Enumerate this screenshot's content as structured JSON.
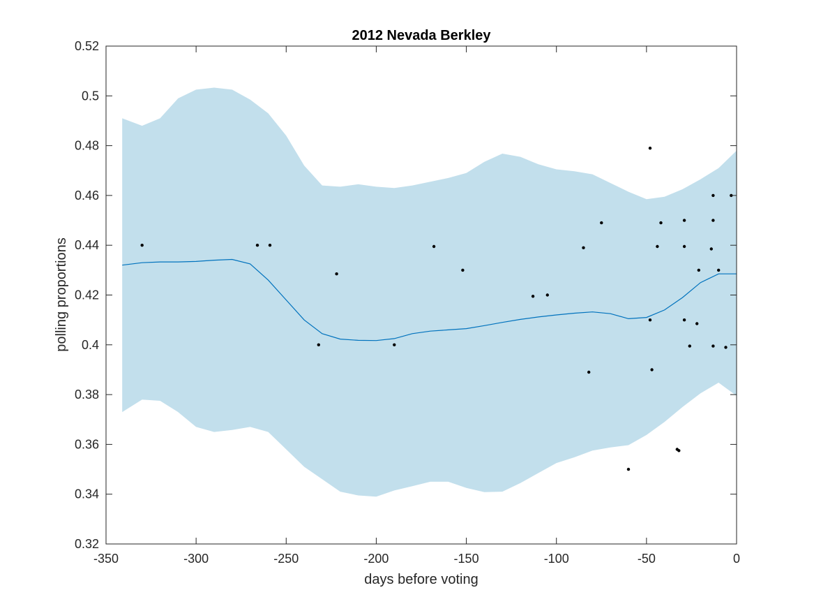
{
  "chart_data": {
    "type": "scatter",
    "title": "2012 Nevada Berkley",
    "xlabel": "days before voting",
    "ylabel": "polling proportions",
    "xlim": [
      -350,
      0
    ],
    "ylim": [
      0.32,
      0.52
    ],
    "xticks": [
      "-350",
      "-300",
      "-250",
      "-200",
      "-150",
      "-100",
      "-50",
      "0"
    ],
    "yticks": [
      "0.32",
      "0.34",
      "0.36",
      "0.38",
      "0.4",
      "0.42",
      "0.44",
      "0.46",
      "0.48",
      "0.5",
      "0.52"
    ],
    "grid": false,
    "colors": {
      "band": "#c2dfec",
      "line": "#0072bd",
      "points": "#000000",
      "axes": "#262626"
    },
    "band": {
      "x": [
        -341,
        -330,
        -320,
        -310,
        -300,
        -290,
        -280,
        -270,
        -260,
        -250,
        -240,
        -230,
        -220,
        -210,
        -200,
        -190,
        -180,
        -170,
        -160,
        -150,
        -140,
        -130,
        -120,
        -110,
        -100,
        -90,
        -80,
        -70,
        -60,
        -50,
        -40,
        -30,
        -20,
        -10,
        0
      ],
      "upper": [
        0.491,
        0.488,
        0.491,
        0.499,
        0.5025,
        0.5033,
        0.5025,
        0.4985,
        0.493,
        0.484,
        0.472,
        0.464,
        0.4635,
        0.4645,
        0.4635,
        0.463,
        0.464,
        0.4655,
        0.467,
        0.469,
        0.4735,
        0.4768,
        0.4755,
        0.4725,
        0.4705,
        0.4697,
        0.4685,
        0.465,
        0.4615,
        0.4585,
        0.4595,
        0.4625,
        0.4665,
        0.471,
        0.478
      ],
      "lower": [
        0.373,
        0.378,
        0.3775,
        0.373,
        0.367,
        0.365,
        0.3658,
        0.367,
        0.365,
        0.358,
        0.351,
        0.346,
        0.341,
        0.3395,
        0.339,
        0.3415,
        0.3432,
        0.345,
        0.345,
        0.3425,
        0.3408,
        0.341,
        0.3445,
        0.3485,
        0.3525,
        0.3548,
        0.3575,
        0.3588,
        0.3597,
        0.3638,
        0.369,
        0.375,
        0.3805,
        0.3848,
        0.3795
      ]
    },
    "fit": {
      "x": [
        -341,
        -330,
        -320,
        -310,
        -300,
        -290,
        -280,
        -270,
        -260,
        -250,
        -240,
        -230,
        -220,
        -210,
        -200,
        -190,
        -180,
        -170,
        -160,
        -150,
        -140,
        -130,
        -120,
        -110,
        -100,
        -90,
        -80,
        -70,
        -60,
        -50,
        -40,
        -30,
        -20,
        -10,
        0
      ],
      "y": [
        0.432,
        0.433,
        0.4333,
        0.4333,
        0.4335,
        0.434,
        0.4343,
        0.4325,
        0.426,
        0.418,
        0.41,
        0.4045,
        0.4023,
        0.4018,
        0.4017,
        0.4025,
        0.4045,
        0.4055,
        0.406,
        0.4065,
        0.4077,
        0.409,
        0.4102,
        0.4112,
        0.412,
        0.4127,
        0.4132,
        0.4125,
        0.4105,
        0.411,
        0.414,
        0.419,
        0.425,
        0.4285,
        0.4285
      ]
    },
    "points": [
      {
        "x": -330,
        "y": 0.44
      },
      {
        "x": -266,
        "y": 0.44
      },
      {
        "x": -259,
        "y": 0.44
      },
      {
        "x": -232,
        "y": 0.4
      },
      {
        "x": -222,
        "y": 0.4285
      },
      {
        "x": -190,
        "y": 0.4
      },
      {
        "x": -168,
        "y": 0.4395
      },
      {
        "x": -152,
        "y": 0.43
      },
      {
        "x": -113,
        "y": 0.4195
      },
      {
        "x": -105,
        "y": 0.42
      },
      {
        "x": -85,
        "y": 0.439
      },
      {
        "x": -82,
        "y": 0.389
      },
      {
        "x": -75,
        "y": 0.449
      },
      {
        "x": -60,
        "y": 0.35
      },
      {
        "x": -48,
        "y": 0.479
      },
      {
        "x": -48,
        "y": 0.41
      },
      {
        "x": -47,
        "y": 0.39
      },
      {
        "x": -44,
        "y": 0.4395
      },
      {
        "x": -42,
        "y": 0.449
      },
      {
        "x": -33,
        "y": 0.358
      },
      {
        "x": -32,
        "y": 0.3575
      },
      {
        "x": -29,
        "y": 0.45
      },
      {
        "x": -29,
        "y": 0.4395
      },
      {
        "x": -29,
        "y": 0.41
      },
      {
        "x": -26,
        "y": 0.3995
      },
      {
        "x": -22,
        "y": 0.4085
      },
      {
        "x": -21,
        "y": 0.43
      },
      {
        "x": -14,
        "y": 0.4385
      },
      {
        "x": -13,
        "y": 0.46
      },
      {
        "x": -13,
        "y": 0.45
      },
      {
        "x": -13,
        "y": 0.3995
      },
      {
        "x": -10,
        "y": 0.43
      },
      {
        "x": -6,
        "y": 0.399
      },
      {
        "x": -3,
        "y": 0.46
      }
    ]
  }
}
